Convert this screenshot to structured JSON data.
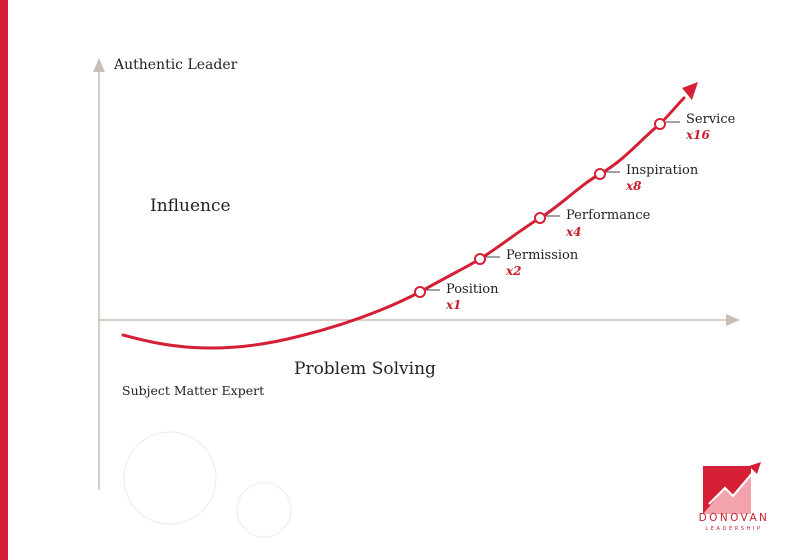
{
  "diagram": {
    "y_axis_top_label": "Authentic Leader",
    "y_axis_mid_label": "Influence",
    "x_axis_label": "Problem Solving",
    "origin_label": "Subject Matter Expert",
    "stages": [
      {
        "name": "Position",
        "multiplier": "x1"
      },
      {
        "name": "Permission",
        "multiplier": "x2"
      },
      {
        "name": "Performance",
        "multiplier": "x4"
      },
      {
        "name": "Inspiration",
        "multiplier": "x8"
      },
      {
        "name": "Service",
        "multiplier": "x16"
      }
    ],
    "colors": {
      "accent": "#d41f35",
      "axis": "#c9bfb6",
      "text": "#222222"
    }
  },
  "logo": {
    "name": "DONOVAN",
    "subtitle": "LEADERSHIP",
    "icon": "rising-arrow-logo-icon"
  }
}
